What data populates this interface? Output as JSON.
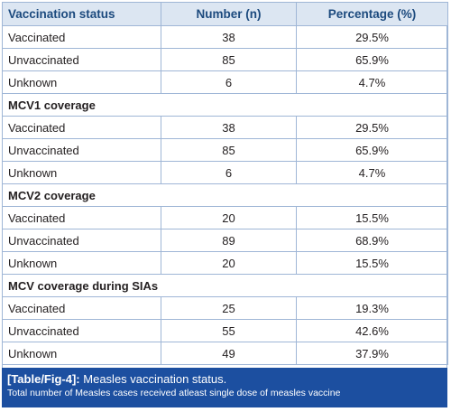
{
  "table": {
    "headers": [
      "Vaccination status",
      "Number (n)",
      "Percentage (%)"
    ],
    "groups": [
      {
        "title": "",
        "rows": [
          {
            "status": "Vaccinated",
            "number": "38",
            "percentage": "29.5%"
          },
          {
            "status": "Unvaccinated",
            "number": "85",
            "percentage": "65.9%"
          },
          {
            "status": "Unknown",
            "number": "6",
            "percentage": "4.7%"
          }
        ]
      },
      {
        "title": "MCV1 coverage",
        "rows": [
          {
            "status": "Vaccinated",
            "number": "38",
            "percentage": "29.5%"
          },
          {
            "status": "Unvaccinated",
            "number": "85",
            "percentage": "65.9%"
          },
          {
            "status": "Unknown",
            "number": "6",
            "percentage": "4.7%"
          }
        ]
      },
      {
        "title": "MCV2 coverage",
        "rows": [
          {
            "status": "Vaccinated",
            "number": "20",
            "percentage": "15.5%"
          },
          {
            "status": "Unvaccinated",
            "number": "89",
            "percentage": "68.9%"
          },
          {
            "status": "Unknown",
            "number": "20",
            "percentage": "15.5%"
          }
        ]
      },
      {
        "title": "MCV coverage during SIAs",
        "rows": [
          {
            "status": "Vaccinated",
            "number": "25",
            "percentage": "19.3%"
          },
          {
            "status": "Unvaccinated",
            "number": "55",
            "percentage": "42.6%"
          },
          {
            "status": "Unknown",
            "number": "49",
            "percentage": "37.9%"
          }
        ]
      }
    ]
  },
  "caption": {
    "label": "[Table/Fig-4]:",
    "title": "Measles vaccination status.",
    "note": "Total number of Measles cases received atleast single dose of measles vaccine"
  },
  "colors": {
    "header_bg": "#dce6f2",
    "header_text": "#1c4a7e",
    "border": "#9fb6d6",
    "caption_bg": "#1c4fa0"
  }
}
